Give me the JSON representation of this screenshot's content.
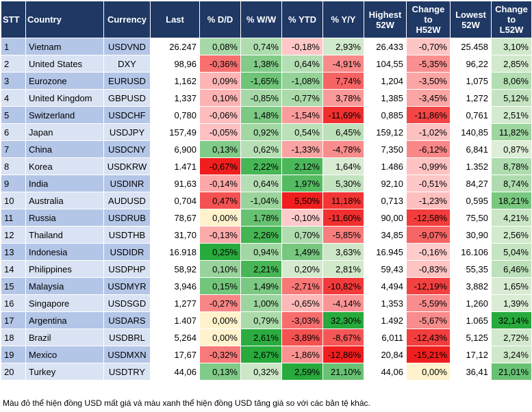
{
  "table": {
    "headers": [
      "STT",
      "Country",
      "Currency",
      "Last",
      "% D/D",
      "% W/W",
      "% YTD",
      "% Y/Y",
      "Highest\n52W",
      "Change\nto\nH52W",
      "Lowest\n52W",
      "Change\nto\nL52W"
    ],
    "rows": [
      [
        "1",
        "Vietnam",
        "USDVND",
        "26.247",
        "0,08%",
        "0,74%",
        "-0,18%",
        "2,93%",
        "26.433",
        "-0,70%",
        "25.458",
        "3,10%"
      ],
      [
        "2",
        "United States",
        "DXY",
        "98,96",
        "-0,36%",
        "1,38%",
        "0,64%",
        "-4,91%",
        "104,55",
        "-5,35%",
        "96,22",
        "2,85%"
      ],
      [
        "3",
        "Eurozone",
        "EURUSD",
        "1,162",
        "0,09%",
        "-1,65%",
        "-1,08%",
        "7,74%",
        "1,204",
        "-3,50%",
        "1,075",
        "8,06%"
      ],
      [
        "4",
        "United Kingdom",
        "GBPUSD",
        "1,337",
        "0,10%",
        "-0,85%",
        "-0,77%",
        "3,78%",
        "1,385",
        "-3,45%",
        "1,272",
        "5,12%"
      ],
      [
        "5",
        "Switzerland",
        "USDCHF",
        "0,780",
        "-0,06%",
        "1,48%",
        "-1,54%",
        "-11,69%",
        "0,885",
        "-11,86%",
        "0,761",
        "2,51%"
      ],
      [
        "6",
        "Japan",
        "USDJPY",
        "157,49",
        "-0,05%",
        "0,92%",
        "0,54%",
        "6,45%",
        "159,12",
        "-1,02%",
        "140,85",
        "11,82%"
      ],
      [
        "7",
        "China",
        "USDCNY",
        "6,900",
        "0,13%",
        "0,62%",
        "-1,33%",
        "-4,78%",
        "7,350",
        "-6,12%",
        "6,841",
        "0,87%"
      ],
      [
        "8",
        "Korea",
        "USDKRW",
        "1.471",
        "-0,67%",
        "2,22%",
        "2,12%",
        "1,64%",
        "1.486",
        "-0,99%",
        "1.352",
        "8,78%"
      ],
      [
        "9",
        "India",
        "USDINR",
        "91,63",
        "-0,14%",
        "0,64%",
        "1,97%",
        "5,30%",
        "92,10",
        "-0,51%",
        "84,27",
        "8,74%"
      ],
      [
        "10",
        "Australia",
        "AUDUSD",
        "0,704",
        "0,47%",
        "-1,04%",
        "5,50%",
        "11,18%",
        "0,713",
        "-1,23%",
        "0,595",
        "18,21%"
      ],
      [
        "11",
        "Russia",
        "USDRUB",
        "78,67",
        "0,00%",
        "1,78%",
        "-0,10%",
        "-11,60%",
        "90,00",
        "-12,58%",
        "75,50",
        "4,21%"
      ],
      [
        "12",
        "Thailand",
        "USDTHB",
        "31,70",
        "-0,13%",
        "2,26%",
        "0,70%",
        "-5,85%",
        "34,85",
        "-9,07%",
        "30,90",
        "2,56%"
      ],
      [
        "13",
        "Indonesia",
        "USDIDR",
        "16.918",
        "0,25%",
        "0,94%",
        "1,49%",
        "3,63%",
        "16.945",
        "-0,16%",
        "16.106",
        "5,04%"
      ],
      [
        "14",
        "Philippines",
        "USDPHP",
        "58,92",
        "0,10%",
        "2,21%",
        "0,20%",
        "2,81%",
        "59,43",
        "-0,83%",
        "55,35",
        "6,46%"
      ],
      [
        "15",
        "Malaysia",
        "USDMYR",
        "3,946",
        "0,15%",
        "1,49%",
        "-2,71%",
        "-10,82%",
        "4,494",
        "-12,19%",
        "3,882",
        "1,65%"
      ],
      [
        "16",
        "Singapore",
        "USDSGD",
        "1,277",
        "-0,27%",
        "1,00%",
        "-0,65%",
        "-4,14%",
        "1,353",
        "-5,59%",
        "1,260",
        "1,39%"
      ],
      [
        "17",
        "Argentina",
        "USDARS",
        "1.407",
        "0,00%",
        "0,79%",
        "-3,03%",
        "32,30%",
        "1.492",
        "-5,67%",
        "1.065",
        "32,14%"
      ],
      [
        "18",
        "Brazil",
        "USDBRL",
        "5,264",
        "0,00%",
        "2,61%",
        "-3,89%",
        "-8,67%",
        "6,011",
        "-12,43%",
        "5,125",
        "2,72%"
      ],
      [
        "19",
        "Mexico",
        "USDMXN",
        "17,67",
        "-0,32%",
        "2,67%",
        "-1,86%",
        "-12,86%",
        "20,84",
        "-15,21%",
        "17,12",
        "3,24%"
      ],
      [
        "20",
        "Turkey",
        "USDTRY",
        "44,06",
        "0,13%",
        "0,32%",
        "2,59%",
        "21,10%",
        "44,06",
        "0,00%",
        "36,41",
        "21,01%"
      ]
    ]
  },
  "footnote": "Màu đỏ thể hiện đồng USD mất giá và màu xanh thể hiện đồng USD tăng giá so với các bản tệ khác."
}
